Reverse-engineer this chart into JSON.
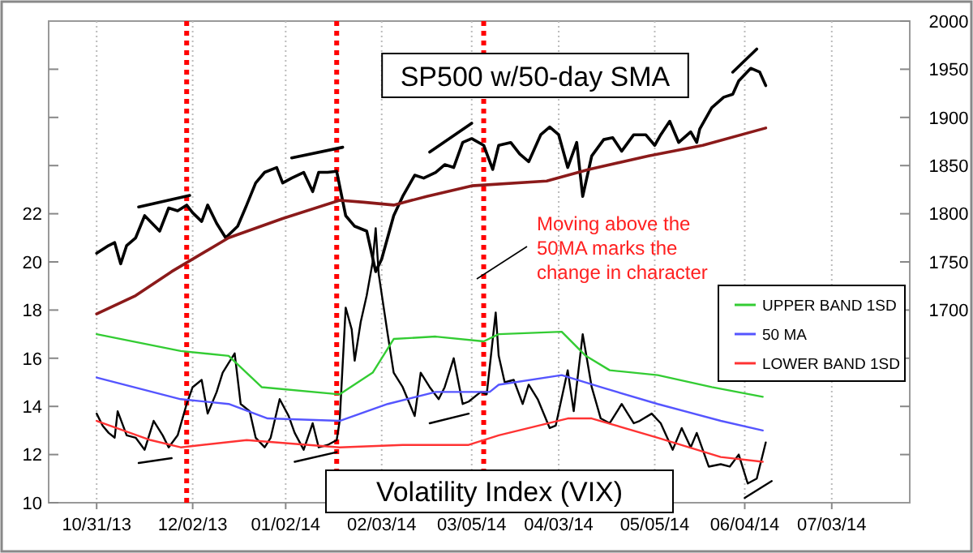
{
  "chart_data": {
    "type": "line",
    "title": "SP500 w/50-day SMA",
    "subtitle": "Volatility Index (VIX)",
    "xlim": [
      "2013-10-15",
      "2014-07-29"
    ],
    "xticks": [
      {
        "value": "2013-10-31",
        "label": "10/31/13"
      },
      {
        "value": "2013-12-02",
        "label": "12/02/13"
      },
      {
        "value": "2014-01-02",
        "label": "01/02/14"
      },
      {
        "value": "2014-02-03",
        "label": "02/03/14"
      },
      {
        "value": "2014-03-05",
        "label": "03/05/14"
      },
      {
        "value": "2014-04-03",
        "label": "04/03/14"
      },
      {
        "value": "2014-05-05",
        "label": "05/05/14"
      },
      {
        "value": "2014-06-04",
        "label": "06/04/14"
      },
      {
        "value": "2014-07-03",
        "label": "07/03/14"
      }
    ],
    "ylim": [
      10,
      30
    ],
    "yticks": [
      10,
      12,
      14,
      16,
      18,
      20,
      22,
      {
        "value": 24,
        "label": null
      },
      {
        "value": 26,
        "label": null
      },
      {
        "value": 28,
        "label": null
      }
    ],
    "y2lim": [
      1500,
      2000
    ],
    "y2ticks": [
      {
        "value": 1550,
        "label": null
      },
      {
        "value": 1600,
        "label": null
      },
      {
        "value": 1650,
        "label": null
      },
      1700,
      1750,
      1800,
      1850,
      1900,
      1950,
      2000
    ],
    "grid": "x",
    "legend": "right",
    "series": [
      {
        "color": "#000000",
        "axis": "y2",
        "x": [
          "2013-10-31",
          "2013-11-04",
          "2013-11-06",
          "2013-11-08",
          "2013-11-10",
          "2013-11-13",
          "2013-11-16",
          "2013-11-21",
          "2013-11-24",
          "2013-11-27",
          "2013-11-30",
          "2013-12-02",
          "2013-12-05",
          "2013-12-07",
          "2013-12-10",
          "2013-12-13",
          "2013-12-17",
          "2013-12-20",
          "2013-12-23",
          "2013-12-26",
          "2013-12-30",
          "2014-01-01",
          "2014-01-04",
          "2014-01-08",
          "2014-01-11",
          "2014-01-13",
          "2014-01-16",
          "2014-01-19",
          "2014-01-22",
          "2014-01-25",
          "2014-01-29",
          "2014-02-01",
          "2014-02-03",
          "2014-02-07",
          "2014-02-10",
          "2014-02-14",
          "2014-02-17",
          "2014-02-21",
          "2014-02-24",
          "2014-02-27",
          "2014-03-02",
          "2014-03-05",
          "2014-03-09",
          "2014-03-12",
          "2014-03-14",
          "2014-03-18",
          "2014-03-21",
          "2014-03-24",
          "2014-03-28",
          "2014-03-31",
          "2014-04-03",
          "2014-04-06",
          "2014-04-09",
          "2014-04-11",
          "2014-04-14",
          "2014-04-18",
          "2014-04-21",
          "2014-04-24",
          "2014-04-28",
          "2014-05-02",
          "2014-05-05",
          "2014-05-07",
          "2014-05-10",
          "2014-05-13",
          "2014-05-17",
          "2014-05-19",
          "2014-05-20",
          "2014-05-24",
          "2014-05-28",
          "2014-05-31",
          "2014-06-02",
          "2014-06-06",
          "2014-06-09",
          "2014-06-11"
        ],
        "values": [
          1759,
          1767,
          1770,
          1748,
          1767,
          1775,
          1798,
          1782,
          1806,
          1803,
          1809,
          1801,
          1792,
          1809,
          1790,
          1775,
          1787,
          1809,
          1832,
          1843,
          1848,
          1832,
          1837,
          1843,
          1823,
          1843,
          1843,
          1844,
          1798,
          1787,
          1782,
          1740,
          1753,
          1798,
          1818,
          1840,
          1837,
          1843,
          1851,
          1848,
          1874,
          1878,
          1871,
          1846,
          1871,
          1874,
          1862,
          1854,
          1882,
          1890,
          1882,
          1848,
          1874,
          1818,
          1860,
          1877,
          1879,
          1865,
          1882,
          1882,
          1871,
          1882,
          1896,
          1874,
          1885,
          1874,
          1888,
          1910,
          1921,
          1924,
          1938,
          1951,
          1947,
          1933
        ]
      },
      {
        "color": "#8b1a1a",
        "axis": "y2",
        "x": [
          "2013-10-31",
          "2013-11-13",
          "2013-11-25",
          "2013-12-14",
          "2014-01-01",
          "2014-01-20",
          "2014-01-28",
          "2014-02-07",
          "2014-02-18",
          "2014-03-05",
          "2014-03-30",
          "2014-04-13",
          "2014-05-03",
          "2014-05-21",
          "2014-06-11"
        ],
        "values": [
          1696,
          1715,
          1740,
          1775,
          1795,
          1814,
          1812,
          1809,
          1818,
          1829,
          1834,
          1846,
          1860,
          1871,
          1889
        ]
      },
      {
        "color": "#000000",
        "axis": "y2",
        "x": [
          "2013-11-14",
          "2013-12-01",
          "2013-12-15",
          "2014-01-04",
          "2014-01-21",
          "2014-02-01",
          "2014-02-19",
          "2014-03-05",
          "2014-04-15",
          "2014-05-31",
          "2014-06-08"
        ],
        "values": [
          1807,
          1819,
          null,
          1858,
          1869,
          null,
          1864,
          1894,
          null,
          1947,
          1971
        ]
      },
      {
        "color": "#000000",
        "x": [
          "2013-10-31",
          "2013-11-02",
          "2013-11-04",
          "2013-11-06",
          "2013-11-07",
          "2013-11-10",
          "2013-11-13",
          "2013-11-16",
          "2013-11-19",
          "2013-11-22",
          "2013-11-24",
          "2013-11-27",
          "2013-11-30",
          "2013-12-02",
          "2013-12-05",
          "2013-12-07",
          "2013-12-10",
          "2013-12-12",
          "2013-12-14",
          "2013-12-16",
          "2013-12-18",
          "2013-12-21",
          "2013-12-23",
          "2013-12-26",
          "2013-12-28",
          "2013-12-31",
          "2014-01-03",
          "2014-01-05",
          "2014-01-08",
          "2014-01-11",
          "2014-01-13",
          "2014-01-16",
          "2014-01-19",
          "2014-01-20",
          "2014-01-22",
          "2014-01-24",
          "2014-01-25",
          "2014-01-27",
          "2014-01-29",
          "2014-01-31",
          "2014-02-01",
          "2014-02-02",
          "2014-02-05",
          "2014-02-07",
          "2014-02-10",
          "2014-02-14",
          "2014-02-16",
          "2014-02-19",
          "2014-02-22",
          "2014-02-24",
          "2014-02-27",
          "2014-03-02",
          "2014-03-04",
          "2014-03-08",
          "2014-03-10",
          "2014-03-13",
          "2014-03-14",
          "2014-03-16",
          "2014-03-19",
          "2014-03-22",
          "2014-03-24",
          "2014-03-27",
          "2014-03-31",
          "2014-04-02",
          "2014-04-06",
          "2014-04-08",
          "2014-04-11",
          "2014-04-14",
          "2014-04-17",
          "2014-04-20",
          "2014-04-24",
          "2014-04-28",
          "2014-04-30",
          "2014-05-04",
          "2014-05-07",
          "2014-05-11",
          "2014-05-14",
          "2014-05-17",
          "2014-05-19",
          "2014-05-23",
          "2014-05-27",
          "2014-05-30",
          "2014-06-02",
          "2014-06-05",
          "2014-06-08",
          "2014-06-11"
        ],
        "values": [
          13.7,
          13.2,
          12.9,
          12.7,
          13.8,
          12.8,
          12.7,
          12.2,
          13.4,
          12.8,
          12.3,
          12.8,
          14.1,
          14.8,
          15.1,
          13.7,
          14.6,
          15.4,
          15.8,
          16.2,
          14.1,
          13.8,
          12.7,
          12.3,
          12.7,
          14.3,
          13.6,
          12.9,
          12.2,
          13.3,
          12.3,
          12.4,
          12.6,
          13.4,
          18.1,
          17.2,
          15.9,
          17.5,
          18.6,
          20.0,
          21.4,
          19.5,
          17.0,
          15.4,
          14.8,
          13.6,
          15.4,
          14.8,
          14.3,
          14.8,
          16.0,
          14.1,
          14.2,
          14.6,
          14.5,
          17.9,
          16.1,
          15.0,
          15.1,
          14.1,
          14.9,
          14.3,
          13.1,
          13.2,
          15.5,
          13.8,
          17.0,
          14.8,
          13.5,
          13.3,
          14.1,
          13.3,
          13.4,
          13.7,
          13.3,
          12.2,
          13.1,
          12.3,
          12.9,
          11.5,
          11.6,
          11.5,
          12.0,
          10.8,
          11.0,
          12.5
        ]
      },
      {
        "name": "UPPER BAND 1SD",
        "color": "#33cc33",
        "x": [
          "2013-10-31",
          "2013-11-28",
          "2013-12-14",
          "2013-12-25",
          "2014-01-20",
          "2014-01-31",
          "2014-02-07",
          "2014-02-21",
          "2014-03-09",
          "2014-03-14",
          "2014-04-04",
          "2014-04-12",
          "2014-04-20",
          "2014-05-06",
          "2014-05-24",
          "2014-06-10"
        ],
        "values": [
          17.0,
          16.3,
          16.1,
          14.8,
          14.5,
          15.4,
          16.8,
          16.9,
          16.7,
          17.0,
          17.1,
          16.1,
          15.5,
          15.3,
          14.8,
          14.4
        ]
      },
      {
        "name": "50 MA",
        "color": "#5555ff",
        "x": [
          "2013-10-31",
          "2013-11-28",
          "2013-12-14",
          "2013-12-27",
          "2014-01-20",
          "2014-02-05",
          "2014-02-21",
          "2014-03-11",
          "2014-03-14",
          "2014-04-04",
          "2014-04-17",
          "2014-05-06",
          "2014-05-27",
          "2014-06-10"
        ],
        "values": [
          15.2,
          14.3,
          14.1,
          13.5,
          13.4,
          14.1,
          14.6,
          14.6,
          14.9,
          15.3,
          14.8,
          14.1,
          13.4,
          13.0
        ]
      },
      {
        "name": "LOWER BAND 1SD",
        "color": "#ff3333",
        "x": [
          "2013-10-31",
          "2013-11-18",
          "2013-11-28",
          "2013-12-20",
          "2014-01-20",
          "2014-02-10",
          "2014-03-04",
          "2014-03-14",
          "2014-04-06",
          "2014-04-14",
          "2014-05-06",
          "2014-05-27",
          "2014-06-10"
        ],
        "values": [
          13.4,
          12.6,
          12.3,
          12.6,
          12.3,
          12.4,
          12.4,
          12.8,
          13.5,
          13.5,
          12.7,
          11.9,
          11.7
        ]
      },
      {
        "color": "#000000",
        "x": [
          "2013-11-14",
          "2013-11-25",
          "2013-12-15",
          "2014-01-05",
          "2014-01-19",
          "2014-02-01",
          "2014-02-19",
          "2014-03-04",
          "2014-04-15",
          "2014-06-04",
          "2014-06-13"
        ],
        "values": [
          11.65,
          11.85,
          null,
          11.7,
          12.1,
          null,
          13.3,
          13.7,
          null,
          10.2,
          10.9
        ]
      }
    ],
    "ref_lines": [
      {
        "axis": "x",
        "value": "2013-11-30",
        "color": "#ff0000",
        "line_style": "dotted"
      },
      {
        "axis": "x",
        "value": "2014-01-19",
        "color": "#ff0000",
        "line_style": "dotted"
      },
      {
        "axis": "x",
        "value": "2014-03-09",
        "color": "#ff0000",
        "line_style": "dotted"
      }
    ],
    "annotations": [
      "Moving above the 50MA marks the change in character"
    ]
  }
}
